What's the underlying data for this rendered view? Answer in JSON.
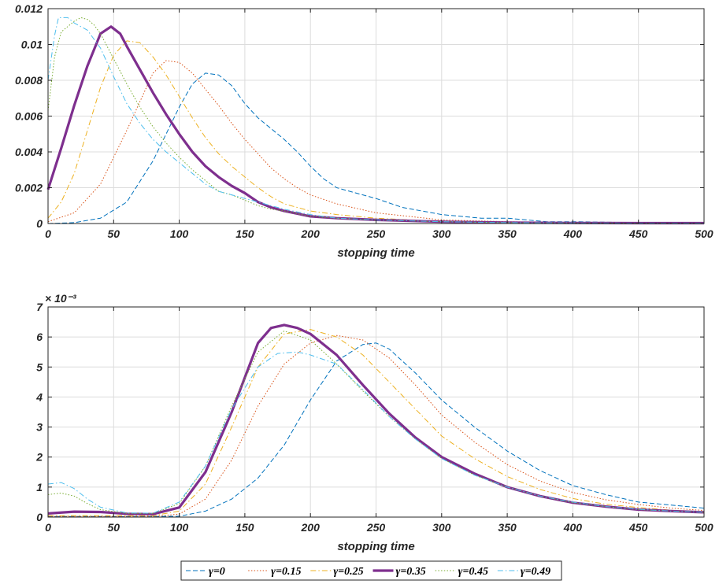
{
  "chart_data": [
    {
      "type": "line",
      "title": "",
      "xlabel": "stopping time",
      "ylabel": "",
      "xlim": [
        0,
        500
      ],
      "ylim": [
        0,
        0.012
      ],
      "xticks": [
        "0",
        "50",
        "100",
        "150",
        "200",
        "250",
        "300",
        "350",
        "400",
        "450",
        "500"
      ],
      "yticks": [
        "0",
        "0.002",
        "0.004",
        "0.006",
        "0.008",
        "0.01",
        "0.012"
      ],
      "exponent_label": "",
      "grid": true,
      "series": [
        {
          "name": "γ=0",
          "color": "#0072BD",
          "dash": "dashed",
          "width": 1,
          "x": [
            0,
            20,
            40,
            60,
            80,
            100,
            110,
            120,
            130,
            140,
            150,
            160,
            170,
            180,
            190,
            200,
            210,
            220,
            230,
            250,
            270,
            300,
            330,
            350,
            380,
            400,
            450,
            500
          ],
          "y": [
            0,
            5e-05,
            0.0003,
            0.0012,
            0.0035,
            0.0065,
            0.0078,
            0.0084,
            0.0083,
            0.0077,
            0.0067,
            0.0059,
            0.0053,
            0.0047,
            0.004,
            0.0032,
            0.0025,
            0.002,
            0.0018,
            0.0014,
            0.0009,
            0.0005,
            0.0003,
            0.0003,
            0.0001,
            0.0001,
            5e-05,
            4e-05
          ]
        },
        {
          "name": "γ=0.15",
          "color": "#D95319",
          "dash": "dotted",
          "width": 1,
          "x": [
            0,
            20,
            40,
            60,
            70,
            80,
            90,
            100,
            110,
            120,
            130,
            140,
            150,
            160,
            170,
            180,
            190,
            200,
            220,
            250,
            300,
            350,
            400,
            450,
            500
          ],
          "y": [
            0.0001,
            0.0006,
            0.0022,
            0.0052,
            0.0068,
            0.0084,
            0.0091,
            0.009,
            0.0084,
            0.0075,
            0.0066,
            0.0056,
            0.0047,
            0.0039,
            0.0031,
            0.0025,
            0.002,
            0.0016,
            0.0011,
            0.0006,
            0.0002,
            0.0001,
            5e-05,
            3e-05,
            3e-05
          ]
        },
        {
          "name": "γ=0.25",
          "color": "#EDB120",
          "dash": "dashdot",
          "width": 1,
          "x": [
            0,
            10,
            20,
            30,
            40,
            50,
            60,
            70,
            80,
            90,
            100,
            110,
            120,
            130,
            140,
            150,
            160,
            170,
            180,
            200,
            220,
            250,
            300,
            350,
            400,
            450,
            500
          ],
          "y": [
            0.0003,
            0.0012,
            0.0028,
            0.0052,
            0.0076,
            0.0094,
            0.0102,
            0.0101,
            0.0093,
            0.0083,
            0.0071,
            0.0059,
            0.0048,
            0.0039,
            0.0032,
            0.0026,
            0.002,
            0.0015,
            0.0011,
            0.0007,
            0.0005,
            0.0003,
            0.0001,
            5e-05,
            3e-05,
            2e-05,
            2e-05
          ]
        },
        {
          "name": "γ=0.35",
          "color": "#7E2F8E",
          "dash": "solid",
          "width": 3.2,
          "x": [
            0,
            10,
            20,
            30,
            40,
            48,
            55,
            60,
            70,
            80,
            90,
            100,
            110,
            120,
            130,
            140,
            150,
            160,
            170,
            180,
            200,
            220,
            250,
            300,
            350,
            400,
            450,
            500
          ],
          "y": [
            0.0019,
            0.0042,
            0.0066,
            0.0088,
            0.0106,
            0.011,
            0.0106,
            0.0099,
            0.0086,
            0.0073,
            0.0061,
            0.005,
            0.004,
            0.0032,
            0.0026,
            0.0021,
            0.0017,
            0.0012,
            0.0009,
            0.0007,
            0.0004,
            0.0003,
            0.0002,
            0.0001,
            5e-05,
            3e-05,
            2e-05,
            2e-05
          ]
        },
        {
          "name": "γ=0.45",
          "color": "#77AC30",
          "dash": "dotted",
          "width": 1,
          "x": [
            0,
            5,
            10,
            20,
            25,
            30,
            35,
            40,
            50,
            60,
            70,
            80,
            90,
            100,
            110,
            120,
            130,
            140,
            150,
            160,
            170,
            180,
            200,
            220,
            250,
            300,
            350,
            400,
            450,
            500
          ],
          "y": [
            0.0063,
            0.0093,
            0.0107,
            0.0113,
            0.0115,
            0.0114,
            0.0111,
            0.0106,
            0.0092,
            0.0078,
            0.0065,
            0.0054,
            0.0045,
            0.0037,
            0.003,
            0.0024,
            0.0018,
            0.0016,
            0.0013,
            0.001,
            0.0008,
            0.0007,
            0.0004,
            0.0003,
            0.0002,
            0.0001,
            5e-05,
            3e-05,
            2e-05,
            2e-05
          ]
        },
        {
          "name": "γ=0.49",
          "color": "#4DBEEE",
          "dash": "dashdot",
          "width": 1,
          "x": [
            0,
            5,
            8,
            15,
            20,
            25,
            30,
            40,
            50,
            60,
            70,
            80,
            90,
            100,
            110,
            120,
            130,
            140,
            150,
            160,
            170,
            180,
            200,
            220,
            250,
            300,
            350,
            400,
            450,
            500
          ],
          "y": [
            0.008,
            0.0105,
            0.0115,
            0.0115,
            0.0112,
            0.011,
            0.0108,
            0.0098,
            0.0082,
            0.0067,
            0.0056,
            0.0047,
            0.004,
            0.0034,
            0.0028,
            0.0022,
            0.0018,
            0.0016,
            0.0014,
            0.0012,
            0.001,
            0.0008,
            0.0005,
            0.0003,
            0.0002,
            0.0001,
            5e-05,
            3e-05,
            2e-05,
            2e-05
          ]
        }
      ]
    },
    {
      "type": "line",
      "title": "",
      "xlabel": "stopping time",
      "ylabel": "",
      "xlim": [
        0,
        500
      ],
      "ylim": [
        0,
        7
      ],
      "xticks": [
        "0",
        "50",
        "100",
        "150",
        "200",
        "250",
        "300",
        "350",
        "400",
        "450",
        "500"
      ],
      "yticks": [
        "0",
        "1",
        "2",
        "3",
        "4",
        "5",
        "6",
        "7"
      ],
      "exponent_label": "× 10⁻³",
      "grid": true,
      "series": [
        {
          "name": "γ=0",
          "color": "#0072BD",
          "dash": "dashed",
          "width": 1,
          "x": [
            0,
            50,
            80,
            100,
            120,
            140,
            160,
            180,
            200,
            220,
            240,
            250,
            260,
            280,
            300,
            325,
            350,
            375,
            400,
            425,
            450,
            475,
            500
          ],
          "y": [
            0.02,
            0.02,
            0.02,
            0.03,
            0.2,
            0.6,
            1.3,
            2.4,
            3.9,
            5.2,
            5.75,
            5.8,
            5.6,
            4.8,
            3.9,
            3.0,
            2.2,
            1.55,
            1.05,
            0.75,
            0.5,
            0.4,
            0.3
          ]
        },
        {
          "name": "γ=0.15",
          "color": "#D95319",
          "dash": "dotted",
          "width": 1,
          "x": [
            0,
            50,
            80,
            100,
            120,
            140,
            160,
            180,
            200,
            220,
            240,
            260,
            280,
            300,
            325,
            350,
            375,
            400,
            425,
            450,
            475,
            500
          ],
          "y": [
            0.02,
            0.02,
            0.02,
            0.1,
            0.6,
            1.9,
            3.7,
            5.1,
            5.8,
            6.05,
            5.9,
            5.3,
            4.4,
            3.4,
            2.5,
            1.75,
            1.2,
            0.82,
            0.58,
            0.42,
            0.3,
            0.22
          ]
        },
        {
          "name": "γ=0.25",
          "color": "#EDB120",
          "dash": "dashdot",
          "width": 1,
          "x": [
            0,
            50,
            80,
            100,
            120,
            140,
            160,
            180,
            200,
            220,
            240,
            260,
            280,
            300,
            325,
            350,
            375,
            400,
            425,
            450,
            475,
            500
          ],
          "y": [
            0.05,
            0.05,
            0.05,
            0.2,
            1.1,
            3.0,
            5.0,
            6.1,
            6.25,
            6.0,
            5.4,
            4.5,
            3.6,
            2.7,
            1.95,
            1.35,
            0.92,
            0.62,
            0.43,
            0.32,
            0.23,
            0.18
          ]
        },
        {
          "name": "γ=0.35",
          "color": "#7E2F8E",
          "dash": "solid",
          "width": 3.2,
          "x": [
            0,
            20,
            40,
            60,
            80,
            100,
            120,
            140,
            160,
            170,
            180,
            190,
            200,
            220,
            240,
            260,
            280,
            300,
            325,
            350,
            375,
            400,
            425,
            450,
            475,
            500
          ],
          "y": [
            0.12,
            0.18,
            0.17,
            0.11,
            0.1,
            0.32,
            1.5,
            3.5,
            5.8,
            6.3,
            6.4,
            6.3,
            6.1,
            5.4,
            4.4,
            3.45,
            2.65,
            2.0,
            1.45,
            1.0,
            0.7,
            0.48,
            0.35,
            0.25,
            0.2,
            0.16
          ]
        },
        {
          "name": "γ=0.45",
          "color": "#77AC30",
          "dash": "dotted",
          "width": 1,
          "x": [
            0,
            10,
            20,
            30,
            40,
            60,
            80,
            100,
            120,
            140,
            160,
            180,
            200,
            220,
            240,
            260,
            280,
            300,
            325,
            350,
            375,
            400,
            425,
            450,
            475,
            500
          ],
          "y": [
            0.75,
            0.8,
            0.7,
            0.45,
            0.25,
            0.12,
            0.12,
            0.45,
            1.7,
            3.7,
            5.5,
            6.2,
            5.9,
            5.1,
            4.2,
            3.35,
            2.6,
            1.95,
            1.4,
            1.0,
            0.7,
            0.48,
            0.35,
            0.25,
            0.2,
            0.16
          ]
        },
        {
          "name": "γ=0.49",
          "color": "#4DBEEE",
          "dash": "dashdot",
          "width": 1,
          "x": [
            0,
            10,
            20,
            30,
            40,
            60,
            80,
            100,
            120,
            140,
            160,
            175,
            190,
            200,
            220,
            240,
            260,
            280,
            300,
            325,
            350,
            375,
            400,
            425,
            450,
            475,
            500
          ],
          "y": [
            1.1,
            1.15,
            0.95,
            0.6,
            0.33,
            0.14,
            0.13,
            0.5,
            1.7,
            3.6,
            5.0,
            5.45,
            5.5,
            5.4,
            5.1,
            4.25,
            3.35,
            2.6,
            1.95,
            1.4,
            1.0,
            0.7,
            0.5,
            0.35,
            0.26,
            0.2,
            0.16
          ]
        }
      ]
    }
  ]
}
